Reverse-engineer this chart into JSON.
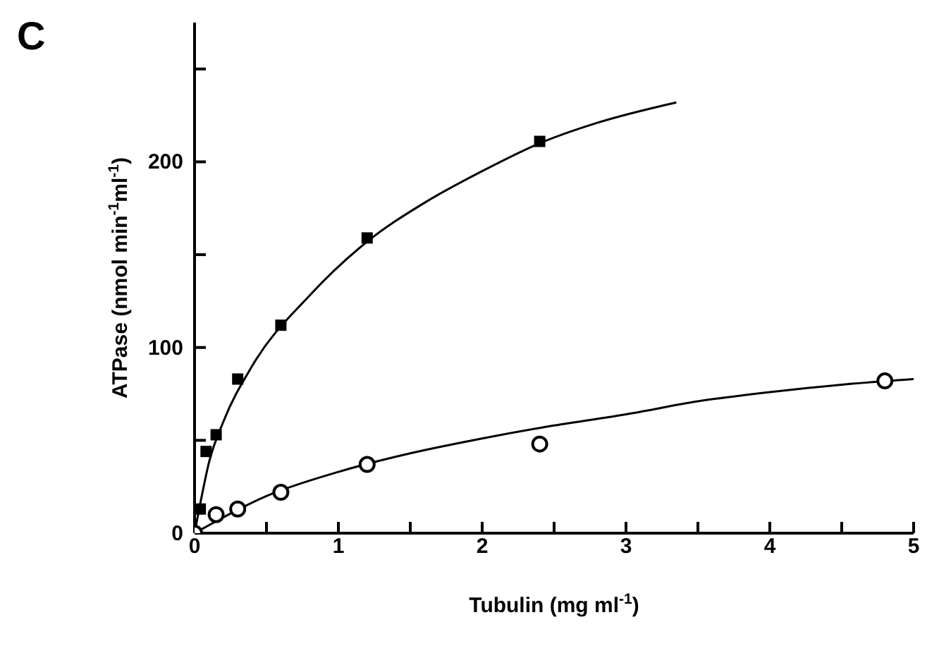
{
  "chart_data": {
    "type": "scatter",
    "title": "C",
    "xlabel": "Tubulin (mg ml$^{-1}$)",
    "ylabel": "ATPase (nmol min$^{-1}$ml$^{-1}$)",
    "xlim": [
      0,
      5
    ],
    "ylim": [
      0,
      275
    ],
    "xticks": [
      0,
      {
        "value": 0.5,
        "label": null
      },
      1,
      {
        "value": 1.5,
        "label": null
      },
      2,
      {
        "value": 2.5,
        "label": null
      },
      3,
      {
        "value": 3.5,
        "label": null
      },
      4,
      {
        "value": 4.5,
        "label": null
      },
      5
    ],
    "yticks": [
      0,
      {
        "value": 50,
        "label": null
      },
      100,
      {
        "value": 150,
        "label": null
      },
      200,
      {
        "value": 250,
        "label": null
      }
    ],
    "grid": false,
    "legend": false,
    "series": [
      {
        "type": "scatter",
        "marker": "square",
        "color": "#000000",
        "x": [
          0.04,
          0.08,
          0.15,
          0.3,
          0.6,
          1.2,
          2.4
        ],
        "values": [
          13,
          44,
          53,
          83,
          112,
          159,
          211
        ]
      },
      {
        "type": "scatter",
        "marker": "circle",
        "color": "#000000",
        "x": [
          0,
          0.15,
          0.3,
          0.6,
          1.2,
          2.4,
          4.8
        ],
        "values": [
          0,
          10,
          13,
          22,
          37,
          48,
          82
        ]
      },
      {
        "type": "line",
        "marker": "none",
        "line_style": "solid",
        "color": "#000000",
        "x": [
          0,
          0.05,
          0.1,
          0.2,
          0.4,
          0.8,
          1.2,
          1.6,
          2,
          2.4,
          2.8,
          3.35
        ],
        "values": [
          0,
          20,
          38,
          60,
          90,
          128,
          157,
          178,
          195,
          210,
          221,
          232
        ]
      },
      {
        "type": "line",
        "marker": "none",
        "line_style": "solid",
        "color": "#000000",
        "x": [
          0,
          0.5,
          1,
          1.5,
          2,
          2.5,
          3,
          3.5,
          4,
          4.5,
          5
        ],
        "values": [
          0,
          20,
          33,
          43,
          51,
          58,
          64,
          71,
          76,
          80,
          83
        ]
      }
    ]
  }
}
